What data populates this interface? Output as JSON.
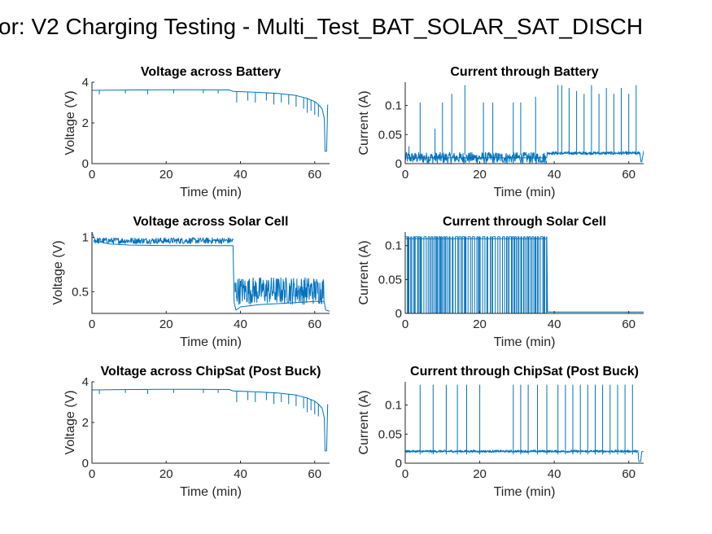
{
  "suptitle": "or: V2 Charging Testing - Multi_Test_BAT_SOLAR_SAT_DISCH",
  "colors": {
    "series": "#0072BD",
    "axis": "#262626",
    "background": "#ffffff"
  },
  "chart_data": [
    {
      "type": "line",
      "title": "Voltage across Battery",
      "xlabel": "Time (min)",
      "ylabel": "Voltage (V)",
      "xlim": [
        0,
        64
      ],
      "ylim": [
        0,
        4
      ],
      "xticks": [
        0,
        20,
        40,
        60
      ],
      "yticks": [
        0,
        2,
        4
      ],
      "x": [
        0,
        10,
        20,
        30,
        37,
        38,
        45,
        50,
        55,
        58,
        60,
        61,
        62,
        62.6,
        62.8,
        63.2,
        63.5
      ],
      "y": [
        3.6,
        3.62,
        3.63,
        3.63,
        3.62,
        3.55,
        3.5,
        3.45,
        3.35,
        3.2,
        3.05,
        2.9,
        2.7,
        2.2,
        0.6,
        0.6,
        2.9
      ],
      "dips": [
        [
          2,
          3.4
        ],
        [
          9,
          3.45
        ],
        [
          15,
          3.4
        ],
        [
          22,
          3.45
        ],
        [
          30,
          3.45
        ],
        [
          34,
          3.45
        ],
        [
          39,
          3.0
        ],
        [
          42,
          3.1
        ],
        [
          44,
          3.0
        ],
        [
          47,
          3.1
        ],
        [
          49,
          2.9
        ],
        [
          51,
          3.0
        ],
        [
          53,
          2.9
        ],
        [
          55,
          2.8
        ],
        [
          57,
          2.7
        ],
        [
          58,
          2.5
        ],
        [
          59,
          2.6
        ],
        [
          60,
          2.4
        ],
        [
          61,
          2.3
        ]
      ]
    },
    {
      "type": "line",
      "title": "Current through Battery",
      "xlabel": "Time (min)",
      "ylabel": "Current (A)",
      "xlim": [
        0,
        64
      ],
      "ylim": [
        0,
        0.14
      ],
      "xticks": [
        0,
        20,
        40,
        60
      ],
      "yticks": [
        0,
        0.05,
        0.1
      ],
      "ytick_labels": [
        "0",
        "0.05",
        "0.1"
      ],
      "x": [
        0,
        38,
        38.1,
        63,
        63.3,
        63.5,
        64
      ],
      "y": [
        0.01,
        0.01,
        0.018,
        0.018,
        0.003,
        0.003,
        0.022
      ],
      "noise_band": [
        [
          0,
          38,
          0.0,
          0.02
        ],
        [
          38,
          63,
          0.015,
          0.021
        ]
      ],
      "spikes": [
        [
          1,
          0.03
        ],
        [
          4,
          0.105
        ],
        [
          8,
          0.06
        ],
        [
          10,
          0.105
        ],
        [
          12.5,
          0.12
        ],
        [
          16,
          0.135
        ],
        [
          21,
          0.105
        ],
        [
          23.5,
          0.105
        ],
        [
          29,
          0.105
        ],
        [
          31,
          0.105
        ],
        [
          35,
          0.115
        ],
        [
          41,
          0.135
        ],
        [
          42,
          0.135
        ],
        [
          44,
          0.13
        ],
        [
          46,
          0.125
        ],
        [
          48,
          0.12
        ],
        [
          50,
          0.135
        ],
        [
          52,
          0.12
        ],
        [
          54,
          0.13
        ],
        [
          56,
          0.12
        ],
        [
          58,
          0.13
        ],
        [
          60,
          0.12
        ],
        [
          62,
          0.135
        ]
      ]
    },
    {
      "type": "line",
      "title": "Voltage across Solar Cell",
      "xlabel": "Time (min)",
      "ylabel": "Voltage (V)",
      "xlim": [
        0,
        64
      ],
      "ylim": [
        0.3,
        1.05
      ],
      "xticks": [
        0,
        20,
        40,
        60
      ],
      "yticks": [
        0.5,
        1
      ],
      "ytick_labels": [
        "0.5",
        "1"
      ],
      "x": [
        0,
        0.5,
        1,
        3,
        5,
        10,
        20,
        30,
        38,
        38.3,
        38.8,
        40,
        45,
        50,
        55,
        60,
        62.5,
        63,
        64
      ],
      "y": [
        1.05,
        1.0,
        0.97,
        0.95,
        0.94,
        0.93,
        0.925,
        0.925,
        0.925,
        0.4,
        0.33,
        0.36,
        0.38,
        0.39,
        0.4,
        0.41,
        0.41,
        0.33,
        0.32
      ],
      "noise_band": [
        [
          0.5,
          38,
          0.94,
          1.0
        ],
        [
          38.5,
          62.5,
          0.38,
          0.64
        ]
      ]
    },
    {
      "type": "line",
      "title": "Current through Solar Cell",
      "xlabel": "Time (min)",
      "ylabel": "Current (A)",
      "xlim": [
        0,
        64
      ],
      "ylim": [
        0,
        0.12
      ],
      "xticks": [
        0,
        20,
        40,
        60
      ],
      "yticks": [
        0,
        0.05,
        0.1
      ],
      "ytick_labels": [
        "0",
        "0.05",
        "0.1"
      ],
      "x": [
        0,
        38,
        38.2,
        63,
        64
      ],
      "y": [
        0.11,
        0.11,
        0.002,
        0.002,
        0.002
      ],
      "switching": [
        0,
        38,
        0.0,
        0.113
      ]
    },
    {
      "type": "line",
      "title": "Voltage across ChipSat (Post Buck)",
      "xlabel": "Time (min)",
      "ylabel": "Voltage (V)",
      "xlim": [
        0,
        64
      ],
      "ylim": [
        0,
        4
      ],
      "xticks": [
        0,
        20,
        40,
        60
      ],
      "yticks": [
        0,
        2,
        4
      ],
      "x": [
        0,
        10,
        20,
        30,
        37,
        38,
        45,
        50,
        55,
        58,
        60,
        61,
        62,
        62.6,
        62.8,
        63.2,
        63.5
      ],
      "y": [
        3.6,
        3.62,
        3.63,
        3.63,
        3.62,
        3.55,
        3.5,
        3.45,
        3.35,
        3.2,
        3.05,
        2.9,
        2.7,
        2.2,
        0.6,
        0.6,
        2.9
      ],
      "dips": [
        [
          2,
          3.4
        ],
        [
          9,
          3.45
        ],
        [
          15,
          3.4
        ],
        [
          22,
          3.45
        ],
        [
          30,
          3.45
        ],
        [
          34,
          3.45
        ],
        [
          39,
          3.0
        ],
        [
          42,
          3.1
        ],
        [
          44,
          3.0
        ],
        [
          47,
          3.1
        ],
        [
          49,
          2.9
        ],
        [
          51,
          3.0
        ],
        [
          53,
          2.9
        ],
        [
          55,
          2.8
        ],
        [
          57,
          2.7
        ],
        [
          58,
          2.5
        ],
        [
          59,
          2.6
        ],
        [
          60,
          2.4
        ],
        [
          61,
          2.3
        ]
      ]
    },
    {
      "type": "line",
      "title": "Current through ChipSat (Post Buck)",
      "xlabel": "Time (min)",
      "ylabel": "Current (A)",
      "xlim": [
        0,
        64
      ],
      "ylim": [
        0,
        0.14
      ],
      "xticks": [
        0,
        20,
        40,
        60
      ],
      "yticks": [
        0,
        0.05,
        0.1
      ],
      "ytick_labels": [
        "0",
        "0.05",
        "0.1"
      ],
      "x": [
        0,
        62.5,
        62.7,
        63.2,
        63.5,
        64
      ],
      "y": [
        0.02,
        0.02,
        0.003,
        0.003,
        0.02,
        0.02
      ],
      "noise_band": [
        [
          0,
          62.5,
          0.018,
          0.023
        ]
      ],
      "spikes": [
        [
          4,
          0.135
        ],
        [
          7.5,
          0.135
        ],
        [
          11,
          0.135
        ],
        [
          14,
          0.135
        ],
        [
          16.5,
          0.135
        ],
        [
          20,
          0.135
        ],
        [
          29,
          0.135
        ],
        [
          31,
          0.135
        ],
        [
          33,
          0.135
        ],
        [
          35.5,
          0.135
        ],
        [
          38,
          0.135
        ],
        [
          41,
          0.135
        ],
        [
          43,
          0.135
        ],
        [
          45,
          0.135
        ],
        [
          47,
          0.135
        ],
        [
          49,
          0.135
        ],
        [
          51,
          0.135
        ],
        [
          53,
          0.135
        ],
        [
          55,
          0.135
        ],
        [
          57,
          0.135
        ],
        [
          59,
          0.135
        ],
        [
          61,
          0.135
        ]
      ]
    }
  ]
}
